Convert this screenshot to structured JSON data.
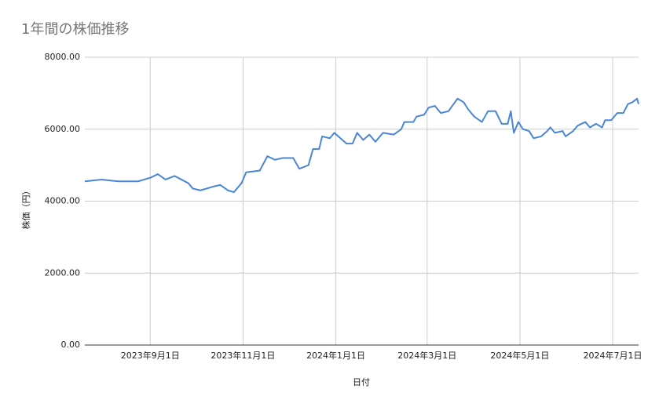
{
  "chart_data": {
    "type": "line",
    "title": "1年間の株価推移",
    "x_label": "日付",
    "y_label": "株価（円）",
    "x": [
      "2023-07-20",
      "2023-07-31",
      "2023-08-11",
      "2023-08-24",
      "2023-09-01",
      "2023-09-06",
      "2023-09-11",
      "2023-09-17",
      "2023-09-26",
      "2023-09-29",
      "2023-10-04",
      "2023-10-12",
      "2023-10-17",
      "2023-10-22",
      "2023-10-26",
      "2023-10-31",
      "2023-11-03",
      "2023-11-12",
      "2023-11-17",
      "2023-11-22",
      "2023-11-27",
      "2023-12-04",
      "2023-12-08",
      "2023-12-14",
      "2023-12-17",
      "2023-12-21",
      "2023-12-23",
      "2023-12-28",
      "2023-12-31",
      "2024-01-08",
      "2024-01-12",
      "2024-01-15",
      "2024-01-19",
      "2024-01-23",
      "2024-01-27",
      "2024-02-01",
      "2024-02-08",
      "2024-02-13",
      "2024-02-15",
      "2024-02-21",
      "2024-02-23",
      "2024-02-28",
      "2024-03-02",
      "2024-03-06",
      "2024-03-10",
      "2024-03-15",
      "2024-03-21",
      "2024-03-25",
      "2024-03-28",
      "2024-04-01",
      "2024-04-06",
      "2024-04-10",
      "2024-04-15",
      "2024-04-19",
      "2024-04-23",
      "2024-04-25",
      "2024-04-27",
      "2024-04-30",
      "2024-05-03",
      "2024-05-07",
      "2024-05-10",
      "2024-05-15",
      "2024-05-19",
      "2024-05-21",
      "2024-05-24",
      "2024-05-29",
      "2024-05-31",
      "2024-06-05",
      "2024-06-08",
      "2024-06-13",
      "2024-06-16",
      "2024-06-20",
      "2024-06-24",
      "2024-06-26",
      "2024-06-30",
      "2024-07-04",
      "2024-07-08",
      "2024-07-11",
      "2024-07-14",
      "2024-07-17",
      "2024-07-18"
    ],
    "series": [
      {
        "name": "株価",
        "color": "#4a86d8",
        "values": [
          4550,
          4600,
          4550,
          4550,
          4650,
          4750,
          4600,
          4700,
          4500,
          4350,
          4300,
          4400,
          4450,
          4300,
          4250,
          4500,
          4800,
          4850,
          5250,
          5150,
          5200,
          5200,
          4900,
          5000,
          5450,
          5450,
          5800,
          5750,
          5900,
          5600,
          5600,
          5900,
          5700,
          5850,
          5650,
          5900,
          5850,
          6000,
          6200,
          6200,
          6350,
          6400,
          6600,
          6650,
          6450,
          6500,
          6850,
          6750,
          6550,
          6350,
          6200,
          6500,
          6500,
          6150,
          6150,
          6500,
          5900,
          6200,
          6000,
          5950,
          5750,
          5800,
          5950,
          6050,
          5900,
          5950,
          5800,
          5950,
          6100,
          6200,
          6050,
          6150,
          6050,
          6250,
          6250,
          6450,
          6450,
          6700,
          6750,
          6850,
          6700
        ]
      }
    ],
    "xlim": [
      "2023-07-20",
      "2024-07-18"
    ],
    "xticks": [
      {
        "value": "2023-09-01",
        "label": "2023年9月1日"
      },
      {
        "value": "2023-11-01",
        "label": "2023年11月1日"
      },
      {
        "value": "2024-01-01",
        "label": "2024年1月1日"
      },
      {
        "value": "2024-03-01",
        "label": "2024年3月1日"
      },
      {
        "value": "2024-05-01",
        "label": "2024年5月1日"
      },
      {
        "value": "2024-07-01",
        "label": "2024年7月1日"
      }
    ],
    "ylim": [
      0,
      8000
    ],
    "yticks": [
      {
        "value": 0,
        "label": "0.00"
      },
      {
        "value": 2000,
        "label": "2000.00"
      },
      {
        "value": 4000,
        "label": "4000.00"
      },
      {
        "value": 6000,
        "label": "6000.00"
      },
      {
        "value": 8000,
        "label": "8000.00"
      }
    ],
    "grid": true
  }
}
